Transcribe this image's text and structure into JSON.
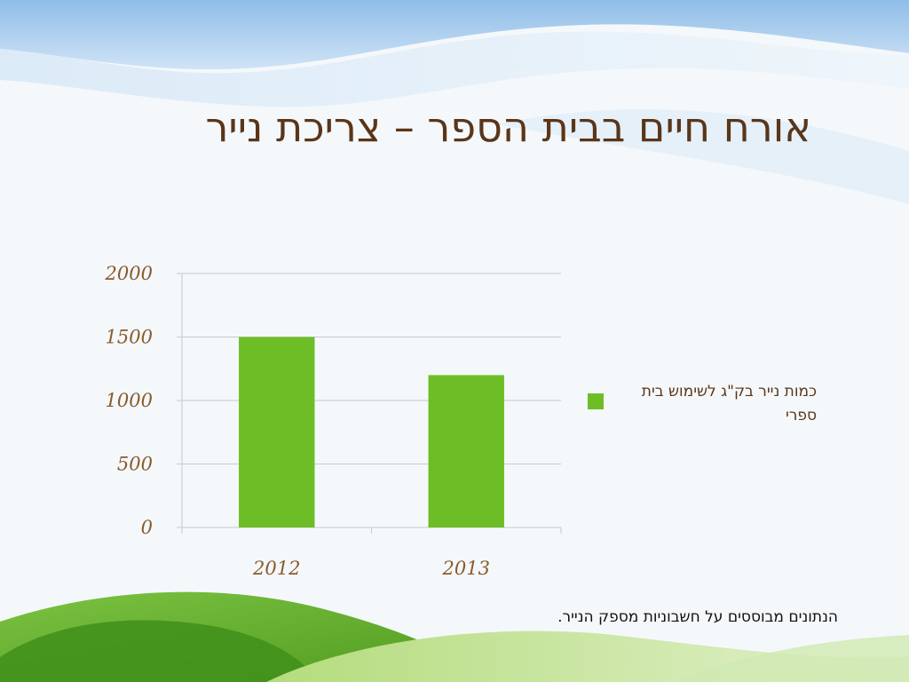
{
  "slide": {
    "title": "אורח חיים בבית הספר – צריכת נייר",
    "footnote": "הנתונים מבוססים על  חשבוניות מספק הנייר."
  },
  "chart_data": {
    "type": "bar",
    "categories": [
      "2012",
      "2013"
    ],
    "series": [
      {
        "name": "כמות נייר בק\"ג לשימוש בית ספרי",
        "values": [
          1500,
          1200
        ]
      }
    ],
    "ylim": [
      0,
      2000
    ],
    "yticks": [
      0,
      500,
      1000,
      1500,
      2000
    ],
    "grid": true,
    "legend_position": "right"
  },
  "colors": {
    "bar": "#6dbe26",
    "title": "#5a3518",
    "tick": "#8a5a2b",
    "grid": "#c9c9c9"
  }
}
